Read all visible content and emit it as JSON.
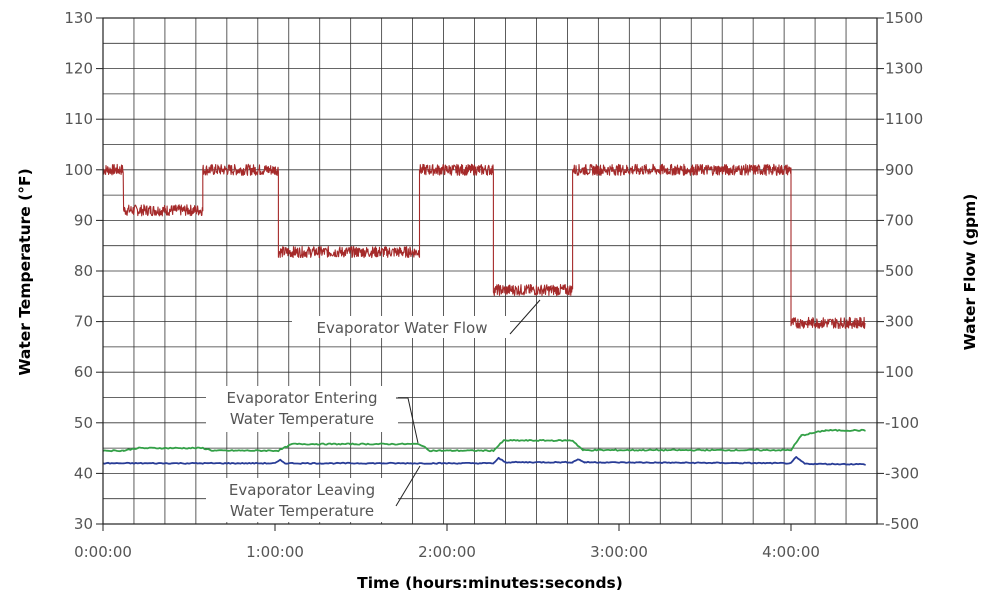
{
  "chart_data": {
    "type": "line",
    "xlabel": "Time (hours:minutes:seconds)",
    "ylabel_left": "Water Temperature (°F)",
    "ylabel_right": "Water Flow (gpm)",
    "x_unit": "hours",
    "xlim": [
      0,
      4.5
    ],
    "ylim_left": [
      30,
      130
    ],
    "ylim_right": [
      -500,
      1500
    ],
    "x_ticks": [
      "0:00:00",
      "1:00:00",
      "2:00:00",
      "3:00:00",
      "4:00:00"
    ],
    "y_ticks_left": [
      "30",
      "40",
      "50",
      "60",
      "70",
      "80",
      "90",
      "100",
      "110",
      "120",
      "130"
    ],
    "y_ticks_right": [
      "-500",
      "-300",
      "-100",
      "100",
      "300",
      "500",
      "700",
      "900",
      "1100",
      "1300",
      "1500"
    ],
    "grid": true,
    "colors": {
      "flow": "#a52a2a",
      "entering": "#33a047",
      "leaving": "#283c96",
      "grid": "#333333"
    },
    "series": [
      {
        "name": "Evaporator Water Flow",
        "axis": "right",
        "x": [
          0.0,
          0.12,
          0.12,
          0.58,
          0.58,
          1.02,
          1.02,
          1.84,
          1.84,
          2.27,
          2.27,
          2.73,
          2.73,
          4.0,
          4.0,
          4.43
        ],
        "values": [
          900,
          900,
          740,
          740,
          900,
          900,
          575,
          575,
          900,
          900,
          425,
          425,
          900,
          900,
          295,
          295
        ]
      },
      {
        "name": "Evaporator Entering Water Temperature",
        "axis": "left",
        "x": [
          0.0,
          0.12,
          0.2,
          0.58,
          0.64,
          1.02,
          1.1,
          1.84,
          1.9,
          2.27,
          2.33,
          2.73,
          2.79,
          4.0,
          4.06,
          4.2,
          4.43
        ],
        "values": [
          44.5,
          44.5,
          45.0,
          45.0,
          44.5,
          44.5,
          45.8,
          45.8,
          44.5,
          44.5,
          46.5,
          46.5,
          44.6,
          44.6,
          47.5,
          48.5,
          48.5
        ]
      },
      {
        "name": "Evaporator Leaving Water Temperature",
        "axis": "left",
        "x": [
          0.0,
          1.0,
          1.03,
          1.06,
          2.27,
          2.3,
          2.34,
          2.73,
          2.76,
          2.8,
          4.0,
          4.03,
          4.08,
          4.43
        ],
        "values": [
          42.0,
          42.0,
          42.6,
          42.0,
          42.0,
          43.0,
          42.2,
          42.2,
          42.8,
          42.2,
          42.0,
          43.2,
          41.9,
          41.8
        ]
      }
    ],
    "annotations": [
      {
        "lines": [
          "Evaporator Water Flow"
        ]
      },
      {
        "lines": [
          "Evaporator Entering",
          "Water Temperature"
        ]
      },
      {
        "lines": [
          "Evaporator Leaving",
          "Water Temperature"
        ]
      }
    ]
  }
}
